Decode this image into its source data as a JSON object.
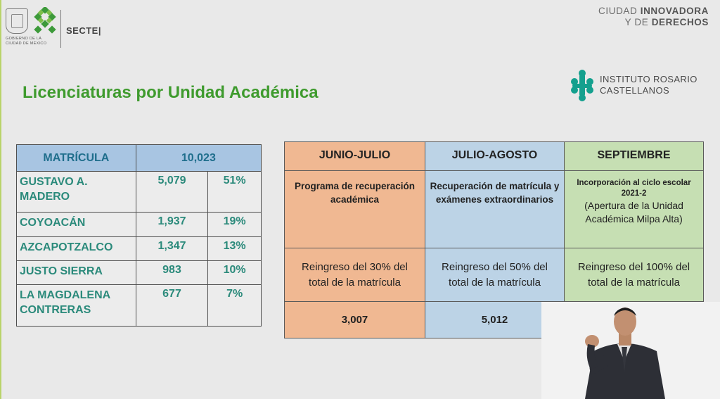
{
  "header": {
    "gov_text_line1": "GOBIERNO DE LA",
    "gov_text_line2": "CIUDAD DE MÉXICO",
    "secte": "SECTE|",
    "city_line1_a": "CIUDAD ",
    "city_line1_b": "INNOVADORA",
    "city_line2_a": "Y DE ",
    "city_line2_b": "DERECHOS",
    "irc_line1": "INSTITUTO ROSARIO",
    "irc_line2": "CASTELLANOS"
  },
  "title": "Licenciaturas por Unidad Académica",
  "matricula": {
    "head_label": "MATRÍCULA",
    "head_total": "10,023",
    "rows": [
      {
        "name": "GUSTAVO A. MADERO",
        "value": "5,079",
        "pct": "51%"
      },
      {
        "name": "COYOACÁN",
        "value": "1,937",
        "pct": "19%"
      },
      {
        "name": "AZCAPOTZALCO",
        "value": "1,347",
        "pct": "13%"
      },
      {
        "name": "JUSTO SIERRA",
        "value": "983",
        "pct": "10%"
      },
      {
        "name": "LA MAGDALENA CONTRERAS",
        "value": "677",
        "pct": "7%"
      }
    ]
  },
  "periods": {
    "headers": [
      "JUNIO-JULIO",
      "JULIO-AGOSTO",
      "SEPTIEMBRE"
    ],
    "desc": [
      "Programa de recuperación académica",
      "Recuperación de matrícula y exámenes extraordinarios"
    ],
    "desc3_bold": "Incorporación al ciclo escolar 2021-2",
    "desc3_normal": "(Apertura de la Unidad Académica Milpa Alta)",
    "goals": [
      "Reingreso del 30% del total de la matrícula",
      "Reingreso del 50% del total de la matrícula",
      "Reingreso del 100% del total de la matrícula"
    ],
    "totals": [
      "3,007",
      "5,012"
    ]
  },
  "colors": {
    "title_green": "#3f9b2e",
    "teal_text": "#2b8a7b",
    "header_blue": "#a8c5e2",
    "orange": "#f0b892",
    "blue": "#bcd3e6",
    "green": "#c6dfb3"
  }
}
